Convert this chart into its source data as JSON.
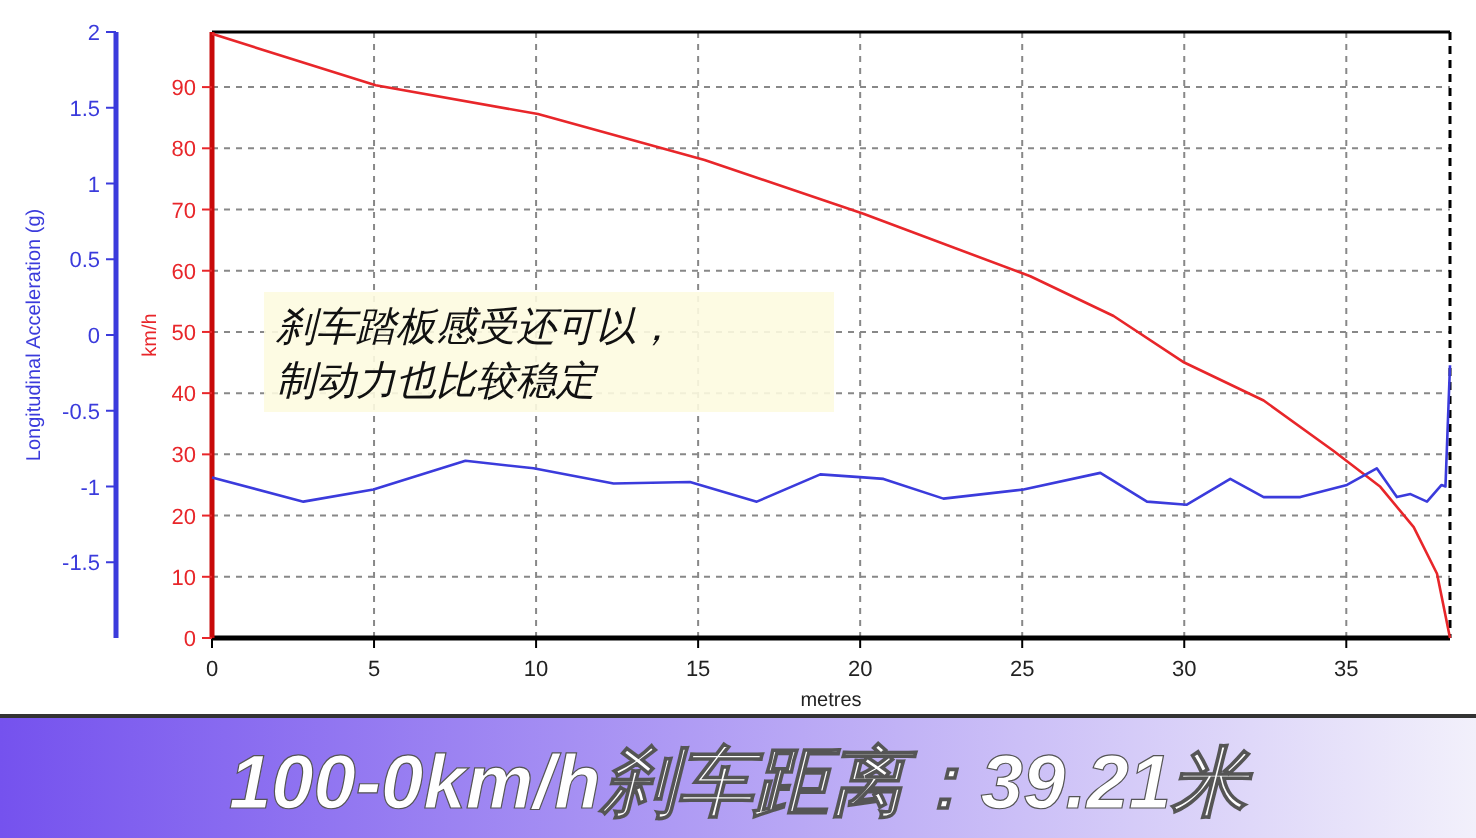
{
  "chart_data": {
    "type": "line",
    "title": "100-0km/h刹车距离：39.21米",
    "xlabel": "metres",
    "ylabel": "km/h",
    "y2label": "Longitudinal Acceleration (g)",
    "annotations": [
      "刹车踏板感受还可以，",
      "制动力也比较稳定"
    ],
    "xlim": [
      0,
      38.2
    ],
    "xticks": [
      0,
      5,
      10,
      15,
      20,
      25,
      30,
      35
    ],
    "ylim": [
      0,
      99
    ],
    "yticks": [
      0,
      10,
      20,
      30,
      40,
      50,
      60,
      70,
      80,
      90
    ],
    "y2lim": [
      -2,
      2
    ],
    "y2ticks": [
      -1.5,
      -1,
      -0.5,
      0,
      0.5,
      1,
      1.5,
      2
    ],
    "grid": true,
    "marker": "none",
    "line_style": "solid",
    "series": [
      {
        "color": "#e8262a",
        "x": [
          0,
          5.05,
          10.06,
          15.2,
          20.1,
          25.25,
          27.82,
          30,
          32.45,
          34.6,
          36.05,
          37.08,
          37.8,
          38.2
        ],
        "values": [
          98.7,
          90.3,
          85.6,
          78.1,
          69.3,
          59.1,
          52.6,
          45,
          38.8,
          30.6,
          24.7,
          18.1,
          10.5,
          0
        ]
      },
      {
        "color": "#3b3bdc",
        "axis": "y2",
        "x": [
          0,
          2.82,
          4.98,
          7.82,
          9.92,
          12.39,
          14.75,
          16.81,
          18.77,
          20.1,
          20.72,
          22.57,
          25.04,
          27.41,
          28.85,
          30.08,
          31.42,
          32.45,
          33.58,
          35.02,
          35.94,
          36.56,
          36.98,
          37.49,
          37.94,
          38.06,
          38.2
        ],
        "values": [
          -0.94,
          -1.1,
          -1.02,
          -0.83,
          -0.88,
          -0.98,
          -0.97,
          -1.1,
          -0.92,
          -0.94,
          -0.95,
          -1.08,
          -1.02,
          -0.91,
          -1.1,
          -1.12,
          -0.95,
          -1.07,
          -1.07,
          -0.99,
          -0.88,
          -1.07,
          -1.05,
          -1.1,
          -0.99,
          -1.0,
          -0.2
        ]
      }
    ]
  }
}
